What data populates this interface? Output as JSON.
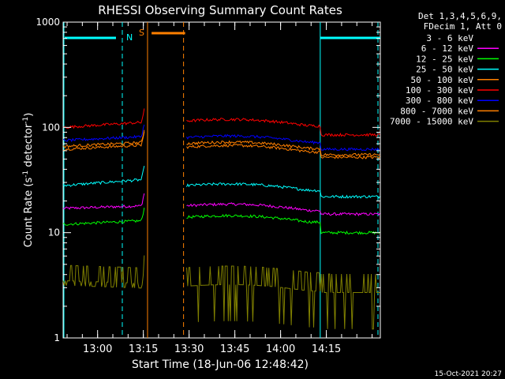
{
  "chart_data": {
    "type": "line",
    "title": "RHESSI Observing Summary Count Rates",
    "xlabel": "Start Time (18-Jun-06 12:48:42)",
    "ylabel_main": "Count Rate (s",
    "ylabel_sup1": "-1",
    "ylabel_mid": " detector",
    "ylabel_sup2": "-1",
    "ylabel_end": ")",
    "y_scale": "log",
    "ylim": [
      1,
      1000
    ],
    "xlim_minutes": [
      0,
      104
    ],
    "x_ticks": [
      {
        "minute": 11.3,
        "label": "13:00"
      },
      {
        "minute": 26.3,
        "label": "13:15"
      },
      {
        "minute": 41.3,
        "label": "13:30"
      },
      {
        "minute": 56.3,
        "label": "13:45"
      },
      {
        "minute": 71.3,
        "label": "14:00"
      },
      {
        "minute": 86.3,
        "label": "14:15"
      }
    ],
    "y_ticks": [
      {
        "value": 1,
        "label": "1"
      },
      {
        "value": 10,
        "label": "10"
      },
      {
        "value": 100,
        "label": "100"
      },
      {
        "value": 1000,
        "label": "1000"
      }
    ],
    "legend_header": [
      "Det 1,3,4,5,6,9,",
      "FDecim 1, Att 0"
    ],
    "timestamp": "15-Oct-2021 20:27",
    "night_label": "N",
    "saa_label": "S",
    "gap_minutes": [
      26.9,
      40.2
    ],
    "night_intervals_minutes": [
      [
        0,
        19.4
      ],
      [
        84.3,
        104
      ]
    ],
    "saa_interval_minutes": [
      29,
      40
    ],
    "series": [
      {
        "name": "3 - 6 keV",
        "color": "#000000",
        "levels": [
          0,
          0,
          0,
          0
        ]
      },
      {
        "name": "6 - 12 keV",
        "color": "#ff00ff",
        "levels": [
          17,
          18,
          18,
          15
        ]
      },
      {
        "name": "12 - 25 keV",
        "color": "#00ff00",
        "levels": [
          12,
          13,
          14,
          10
        ]
      },
      {
        "name": "25 - 50 keV",
        "color": "#00ffff",
        "levels": [
          28,
          32,
          28,
          22
        ]
      },
      {
        "name": "50 - 100 keV",
        "color": "#ff7f00",
        "levels": [
          62,
          68,
          65,
          52
        ]
      },
      {
        "name": "100 - 300 keV",
        "color": "#ff0000",
        "levels": [
          100,
          112,
          115,
          85
        ]
      },
      {
        "name": "300 - 800 keV",
        "color": "#0000ff",
        "levels": [
          75,
          82,
          80,
          62
        ]
      },
      {
        "name": "800 - 7000 keV",
        "color": "#ff8000",
        "levels": [
          66,
          72,
          70,
          55
        ]
      },
      {
        "name": "7000 - 15000 keV",
        "color": "#808000",
        "levels": [
          3.5,
          3.3,
          3.1,
          2.7
        ]
      }
    ]
  }
}
